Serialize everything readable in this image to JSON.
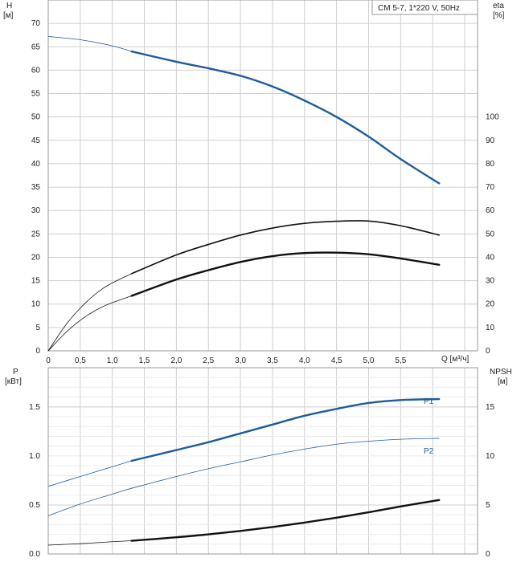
{
  "chart_data": [
    {
      "type": "line",
      "title": "CM 5-7, 1*220 V, 50Hz",
      "xlabel": "Q [м³/ч]",
      "ylabel_left": "H",
      "ylabel_left_unit": "[м]",
      "ylabel_right": "eta",
      "ylabel_right_unit": "[%]",
      "xlim": [
        0,
        6.7
      ],
      "ylim_left": [
        0,
        75
      ],
      "ylim_right": [
        0,
        150
      ],
      "x_ticks": [
        "0",
        "0,5",
        "1,0",
        "1,5",
        "2,0",
        "2,5",
        "3,0",
        "3,5",
        "4,0",
        "4,5",
        "5,0",
        "5,5"
      ],
      "x_tick_values": [
        0,
        0.5,
        1,
        1.5,
        2,
        2.5,
        3,
        3.5,
        4,
        4.5,
        5,
        5.5
      ],
      "y_ticks_left": [
        0,
        5,
        10,
        15,
        20,
        25,
        30,
        35,
        40,
        45,
        50,
        55,
        60,
        65,
        70
      ],
      "y_ticks_right": [
        0,
        10,
        20,
        30,
        40,
        50,
        60,
        70,
        80,
        90,
        100
      ],
      "grid": true,
      "legend": "top-right",
      "series": [
        {
          "axis": "left",
          "color": "#1f5c99",
          "x": [
            0,
            0.5,
            1.0,
            1.3
          ],
          "y": [
            67.2,
            66.5,
            65.2,
            64.0
          ],
          "style": "thin"
        },
        {
          "axis": "left",
          "color": "#1f5c99",
          "x": [
            1.3,
            2.0,
            2.5,
            3.0,
            3.5,
            4.0,
            4.5,
            5.0,
            5.5,
            6.1
          ],
          "y": [
            64.0,
            61.8,
            60.4,
            58.8,
            56.5,
            53.5,
            50.0,
            45.8,
            41.0,
            35.8
          ],
          "style": "bold"
        },
        {
          "axis": "right",
          "color": "#111111",
          "x": [
            0,
            0.3,
            0.6,
            0.9,
            1.3
          ],
          "y": [
            0,
            12,
            21,
            27.5,
            33
          ],
          "style": "thin"
        },
        {
          "axis": "right",
          "color": "#111111",
          "x": [
            1.3,
            2.0,
            2.5,
            3.0,
            3.5,
            4.0,
            4.5,
            5.0,
            5.5,
            6.1
          ],
          "y": [
            33,
            41,
            45.5,
            49.5,
            52.5,
            54.5,
            55.4,
            55.5,
            53.5,
            49.5
          ],
          "style": "medium"
        },
        {
          "axis": "right",
          "color": "#111111",
          "x": [
            0,
            0.3,
            0.6,
            0.9,
            1.3
          ],
          "y": [
            0,
            8.5,
            15,
            19.5,
            23.5
          ],
          "style": "thin"
        },
        {
          "axis": "right",
          "color": "#111111",
          "x": [
            1.3,
            2.0,
            2.5,
            3.0,
            3.5,
            4.0,
            4.5,
            5.0,
            5.5,
            6.1
          ],
          "y": [
            23.5,
            30.5,
            34.5,
            38.0,
            40.5,
            41.8,
            42.0,
            41.3,
            39.5,
            36.8
          ],
          "style": "bold"
        }
      ]
    },
    {
      "type": "line",
      "ylabel_left": "P",
      "ylabel_left_unit": "[кВт]",
      "ylabel_right": "NPSH",
      "ylabel_right_unit": "[м]",
      "xlim": [
        0,
        6.7
      ],
      "ylim_left": [
        0,
        1.9
      ],
      "ylim_right": [
        0,
        19
      ],
      "y_ticks_left": [
        "0.0",
        "0.5",
        "1.0",
        "1.5"
      ],
      "y_tick_values_left": [
        0,
        0.5,
        1.0,
        1.5
      ],
      "y_ticks_right": [
        0,
        5,
        10,
        15
      ],
      "grid": true,
      "series": [
        {
          "name": "P1",
          "axis": "left",
          "color": "#1f5c99",
          "x": [
            0,
            0.5,
            1.0,
            1.3
          ],
          "y": [
            0.69,
            0.79,
            0.89,
            0.95
          ],
          "style": "thin"
        },
        {
          "name": "P1",
          "axis": "left",
          "color": "#1f5c99",
          "x": [
            1.3,
            2.0,
            2.5,
            3.0,
            3.5,
            4.0,
            4.5,
            5.0,
            5.5,
            6.1
          ],
          "y": [
            0.95,
            1.06,
            1.14,
            1.23,
            1.32,
            1.41,
            1.48,
            1.54,
            1.57,
            1.58
          ],
          "style": "bold"
        },
        {
          "name": "P2",
          "axis": "left",
          "color": "#1f5c99",
          "x": [
            0,
            0.5,
            1.0,
            1.3,
            2.0,
            2.5,
            3.0,
            3.5,
            4.0,
            4.5,
            5.0,
            5.5,
            6.1
          ],
          "y": [
            0.39,
            0.51,
            0.61,
            0.67,
            0.79,
            0.87,
            0.94,
            1.01,
            1.07,
            1.12,
            1.15,
            1.17,
            1.18
          ],
          "style": "thin"
        },
        {
          "axis": "right",
          "color": "#111111",
          "x": [
            0,
            0.5,
            1.0,
            1.3
          ],
          "y": [
            0.9,
            1.05,
            1.25,
            1.35
          ],
          "style": "thin"
        },
        {
          "axis": "right",
          "color": "#111111",
          "x": [
            1.3,
            2.0,
            2.5,
            3.0,
            3.5,
            4.0,
            4.5,
            5.0,
            5.5,
            6.1
          ],
          "y": [
            1.35,
            1.7,
            2.0,
            2.35,
            2.75,
            3.2,
            3.7,
            4.25,
            4.85,
            5.5
          ],
          "style": "bold"
        }
      ]
    }
  ]
}
